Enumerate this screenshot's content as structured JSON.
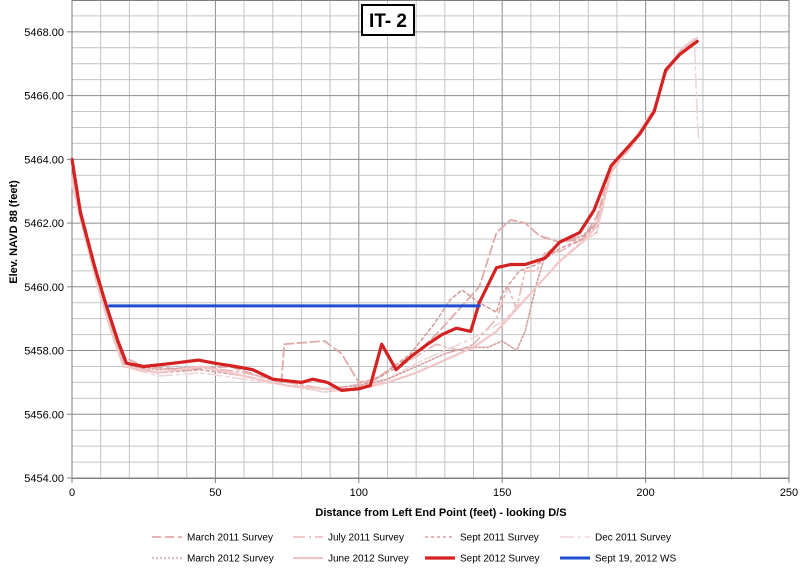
{
  "chart_data": {
    "type": "line",
    "title": "IT- 2",
    "xlabel": "Distance from Left End Point (feet)  - looking D/S",
    "ylabel": "Elev. NAVD 88 (feet)",
    "xlim": [
      0,
      250
    ],
    "ylim": [
      5454,
      5469
    ],
    "x_ticks": [
      0,
      50,
      100,
      150,
      200,
      250
    ],
    "y_ticks": [
      "5454.00",
      "5456.00",
      "5458.00",
      "5460.00",
      "5462.00",
      "5464.00",
      "5466.00",
      "5468.00"
    ],
    "grid": true,
    "legend_position": "bottom",
    "series": [
      {
        "name": "March 2011 Survey",
        "color": "#e0a9a9",
        "dash": "9,4",
        "width": 1.8,
        "points": [
          [
            0,
            5463.5
          ],
          [
            4,
            5462.1
          ],
          [
            8,
            5460.7
          ],
          [
            13,
            5459.1
          ],
          [
            18,
            5457.8
          ],
          [
            25,
            5457.5
          ],
          [
            40,
            5457.4
          ],
          [
            55,
            5457.5
          ],
          [
            65,
            5457.2
          ],
          [
            73,
            5457.0
          ],
          [
            74,
            5458.2
          ],
          [
            88,
            5458.3
          ],
          [
            94,
            5457.9
          ],
          [
            100,
            5457.0
          ],
          [
            106,
            5457.1
          ],
          [
            112,
            5457.5
          ],
          [
            120,
            5457.9
          ],
          [
            128,
            5458.6
          ],
          [
            135,
            5459.3
          ],
          [
            142,
            5460.0
          ],
          [
            148,
            5461.7
          ],
          [
            153,
            5462.1
          ],
          [
            158,
            5462.0
          ],
          [
            163,
            5461.6
          ],
          [
            170,
            5461.4
          ],
          [
            178,
            5461.5
          ],
          [
            183,
            5462.2
          ],
          [
            188,
            5463.7
          ],
          [
            197,
            5464.7
          ],
          [
            203,
            5465.5
          ],
          [
            207,
            5466.8
          ],
          [
            213,
            5467.5
          ],
          [
            218,
            5467.7
          ]
        ]
      },
      {
        "name": "July 2011 Survey",
        "color": "#e7b6b6",
        "dash": "12,4,2,4",
        "width": 1.6,
        "points": [
          [
            0,
            5463.3
          ],
          [
            4,
            5461.9
          ],
          [
            9,
            5460.3
          ],
          [
            14,
            5458.8
          ],
          [
            19,
            5457.6
          ],
          [
            30,
            5457.3
          ],
          [
            45,
            5457.5
          ],
          [
            60,
            5457.3
          ],
          [
            75,
            5457.0
          ],
          [
            88,
            5456.8
          ],
          [
            98,
            5456.9
          ],
          [
            108,
            5457.2
          ],
          [
            118,
            5457.7
          ],
          [
            127,
            5458.2
          ],
          [
            135,
            5458.0
          ],
          [
            140,
            5458.2
          ],
          [
            148,
            5459.0
          ],
          [
            152,
            5460.0
          ],
          [
            155,
            5459.3
          ],
          [
            158,
            5460.5
          ],
          [
            162,
            5460.5
          ],
          [
            165,
            5461.1
          ],
          [
            170,
            5461.1
          ],
          [
            176,
            5461.4
          ],
          [
            183,
            5461.7
          ],
          [
            188,
            5463.6
          ],
          [
            196,
            5464.5
          ],
          [
            203,
            5465.5
          ],
          [
            207,
            5466.7
          ],
          [
            212,
            5467.4
          ],
          [
            218,
            5467.7
          ]
        ]
      },
      {
        "name": "Sept 2011 Survey",
        "color": "#d79f9f",
        "dash": "3,3",
        "width": 1.6,
        "points": [
          [
            0,
            5463.4
          ],
          [
            4,
            5461.8
          ],
          [
            9,
            5460.1
          ],
          [
            14,
            5458.7
          ],
          [
            18,
            5457.6
          ],
          [
            30,
            5457.3
          ],
          [
            45,
            5457.4
          ],
          [
            60,
            5457.2
          ],
          [
            75,
            5456.9
          ],
          [
            88,
            5456.7
          ],
          [
            98,
            5456.8
          ],
          [
            108,
            5457.2
          ],
          [
            118,
            5457.9
          ],
          [
            126,
            5458.8
          ],
          [
            132,
            5459.6
          ],
          [
            136,
            5459.9
          ],
          [
            142,
            5459.5
          ],
          [
            148,
            5459.2
          ],
          [
            150,
            5459.8
          ],
          [
            156,
            5460.5
          ],
          [
            162,
            5460.7
          ],
          [
            170,
            5461.2
          ],
          [
            178,
            5461.5
          ],
          [
            183,
            5462.0
          ],
          [
            188,
            5463.6
          ],
          [
            196,
            5464.6
          ],
          [
            203,
            5465.6
          ],
          [
            207,
            5466.8
          ],
          [
            213,
            5467.5
          ],
          [
            218,
            5467.8
          ]
        ]
      },
      {
        "name": "Dec 2011 Survey",
        "color": "#f0d6d6",
        "dash": "14,4,3,4",
        "width": 1.6,
        "points": [
          [
            0,
            5463.2
          ],
          [
            4,
            5461.7
          ],
          [
            9,
            5460.0
          ],
          [
            14,
            5458.6
          ],
          [
            18,
            5457.5
          ],
          [
            30,
            5457.2
          ],
          [
            45,
            5457.3
          ],
          [
            60,
            5457.1
          ],
          [
            75,
            5456.9
          ],
          [
            88,
            5456.7
          ],
          [
            100,
            5456.8
          ],
          [
            110,
            5457.1
          ],
          [
            120,
            5457.6
          ],
          [
            130,
            5458.0
          ],
          [
            140,
            5458.4
          ],
          [
            150,
            5458.9
          ],
          [
            160,
            5459.8
          ],
          [
            168,
            5460.6
          ],
          [
            176,
            5461.3
          ],
          [
            183,
            5461.7
          ],
          [
            188,
            5463.7
          ],
          [
            196,
            5464.6
          ],
          [
            203,
            5465.6
          ],
          [
            207,
            5466.8
          ],
          [
            213,
            5467.5
          ],
          [
            217,
            5467.8
          ],
          [
            218,
            5465.3
          ],
          [
            218.5,
            5464.6
          ]
        ]
      },
      {
        "name": "March 2012 Survey",
        "color": "#d5a0a0",
        "dash": "2,2",
        "width": 1.6,
        "points": [
          [
            0,
            5463.5
          ],
          [
            4,
            5462.0
          ],
          [
            9,
            5460.2
          ],
          [
            14,
            5458.7
          ],
          [
            18,
            5457.6
          ],
          [
            30,
            5457.4
          ],
          [
            45,
            5457.5
          ],
          [
            60,
            5457.2
          ],
          [
            75,
            5456.9
          ],
          [
            88,
            5456.8
          ],
          [
            100,
            5456.9
          ],
          [
            110,
            5457.1
          ],
          [
            120,
            5457.5
          ],
          [
            130,
            5457.9
          ],
          [
            138,
            5458.1
          ],
          [
            145,
            5458.1
          ],
          [
            150,
            5458.3
          ],
          [
            155,
            5458.0
          ],
          [
            158,
            5458.6
          ],
          [
            162,
            5460.1
          ],
          [
            165,
            5461.0
          ],
          [
            170,
            5461.4
          ],
          [
            178,
            5461.6
          ],
          [
            183,
            5462.0
          ],
          [
            188,
            5463.6
          ],
          [
            196,
            5464.6
          ],
          [
            203,
            5465.6
          ],
          [
            207,
            5466.8
          ],
          [
            213,
            5467.5
          ],
          [
            218,
            5467.7
          ]
        ]
      },
      {
        "name": "June 2012 Survey",
        "color": "#f2c6c6",
        "dash": "",
        "width": 2.2,
        "points": [
          [
            0,
            5463.4
          ],
          [
            4,
            5461.8
          ],
          [
            9,
            5460.0
          ],
          [
            14,
            5458.5
          ],
          [
            18,
            5457.5
          ],
          [
            30,
            5457.3
          ],
          [
            45,
            5457.5
          ],
          [
            60,
            5457.2
          ],
          [
            75,
            5456.9
          ],
          [
            88,
            5456.8
          ],
          [
            100,
            5456.8
          ],
          [
            110,
            5457.0
          ],
          [
            120,
            5457.3
          ],
          [
            130,
            5457.7
          ],
          [
            140,
            5458.1
          ],
          [
            148,
            5458.6
          ],
          [
            155,
            5459.3
          ],
          [
            162,
            5460.0
          ],
          [
            170,
            5460.8
          ],
          [
            178,
            5461.4
          ],
          [
            183,
            5461.9
          ],
          [
            188,
            5463.6
          ],
          [
            196,
            5464.6
          ],
          [
            203,
            5465.6
          ],
          [
            207,
            5466.8
          ],
          [
            213,
            5467.5
          ],
          [
            218,
            5467.8
          ]
        ]
      },
      {
        "name": "Sept 2012 Survey",
        "color": "#d42121",
        "dash": "",
        "width": 3.2,
        "points": [
          [
            0,
            5464.0
          ],
          [
            3,
            5462.3
          ],
          [
            8,
            5460.6
          ],
          [
            12,
            5459.4
          ],
          [
            16,
            5458.3
          ],
          [
            19,
            5457.6
          ],
          [
            25,
            5457.5
          ],
          [
            35,
            5457.6
          ],
          [
            44,
            5457.7
          ],
          [
            50,
            5457.6
          ],
          [
            57,
            5457.5
          ],
          [
            63,
            5457.4
          ],
          [
            70,
            5457.1
          ],
          [
            80,
            5457.0
          ],
          [
            84,
            5457.1
          ],
          [
            89,
            5457.0
          ],
          [
            94,
            5456.75
          ],
          [
            100,
            5456.8
          ],
          [
            104,
            5456.9
          ],
          [
            108,
            5458.2
          ],
          [
            113,
            5457.4
          ],
          [
            118,
            5457.8
          ],
          [
            124,
            5458.2
          ],
          [
            129,
            5458.5
          ],
          [
            134,
            5458.7
          ],
          [
            139,
            5458.6
          ],
          [
            142,
            5459.5
          ],
          [
            148,
            5460.6
          ],
          [
            153,
            5460.7
          ],
          [
            158,
            5460.7
          ],
          [
            165,
            5460.9
          ],
          [
            170,
            5461.4
          ],
          [
            177,
            5461.7
          ],
          [
            182,
            5462.4
          ],
          [
            188,
            5463.8
          ],
          [
            193,
            5464.3
          ],
          [
            198,
            5464.8
          ],
          [
            203,
            5465.5
          ],
          [
            207,
            5466.8
          ],
          [
            212,
            5467.3
          ],
          [
            218,
            5467.7
          ]
        ]
      },
      {
        "name": "Sept 19, 2012 WS",
        "color": "#1f4fcf",
        "dash": "",
        "width": 3,
        "points": [
          [
            13,
            5459.4
          ],
          [
            142,
            5459.4
          ]
        ]
      }
    ]
  }
}
